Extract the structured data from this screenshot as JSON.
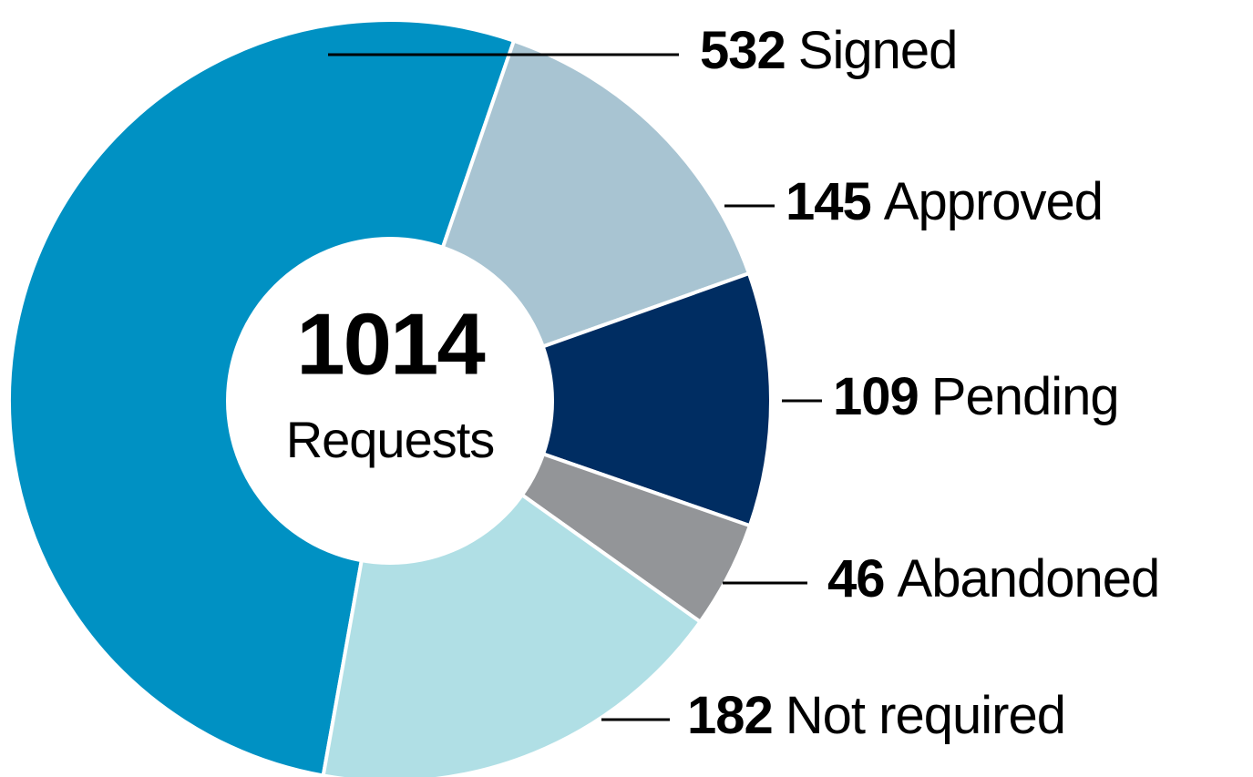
{
  "chart_data": {
    "type": "donut",
    "total": 1014,
    "total_label": "Requests",
    "categories": [
      "Signed",
      "Approved",
      "Pending",
      "Abandoned",
      "Not required"
    ],
    "values": [
      532,
      145,
      109,
      46,
      182
    ],
    "colors": [
      "#0091c3",
      "#a8c4d2",
      "#002d62",
      "#939598",
      "#b0dfe5"
    ]
  }
}
